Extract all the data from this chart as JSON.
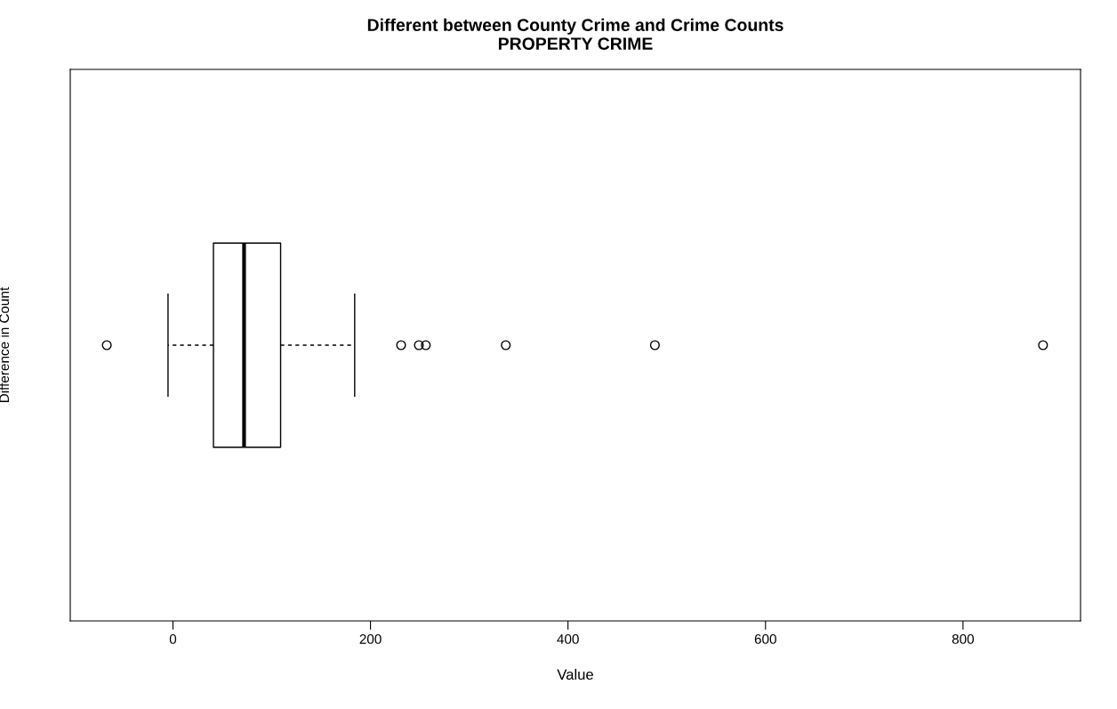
{
  "chart_data": {
    "type": "box",
    "title": "Different between County Crime and Crime Counts\nPROPERTY CRIME",
    "xlabel": "Value",
    "ylabel": "Difference in Count",
    "orientation": "horizontal",
    "categories": [
      null
    ],
    "boxes": [
      {
        "low": -5,
        "q1": 41,
        "median": 72,
        "q3": 109,
        "high": 184,
        "outliers": [
          -67,
          231,
          249,
          256,
          337,
          488,
          881
        ]
      }
    ],
    "xlim": [
      -104,
      919
    ],
    "xticks": [
      0,
      200,
      400,
      600,
      800
    ],
    "tick_labels": "x",
    "grid": false,
    "legend": false
  }
}
